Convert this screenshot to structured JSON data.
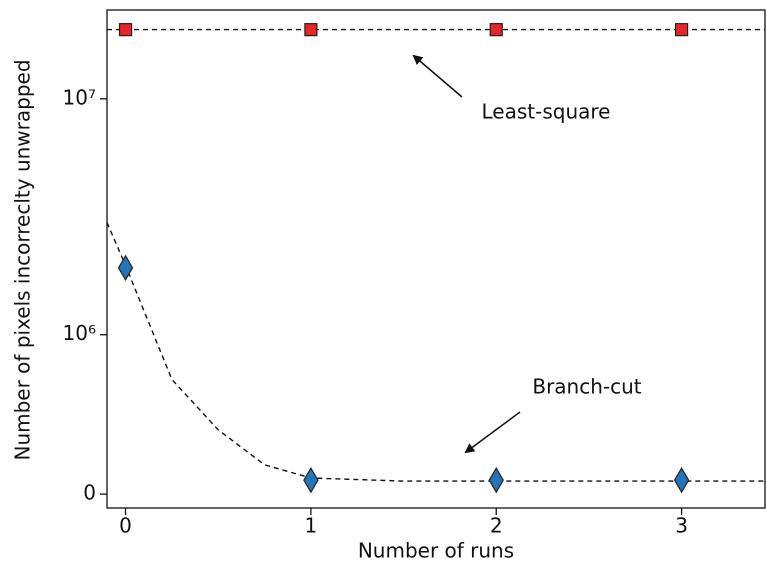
{
  "chart_data": {
    "type": "scatter",
    "xlabel": "Number of runs",
    "ylabel": "Number of pixels incorreclty unwrapped",
    "xlim": [
      -0.1,
      3.45
    ],
    "xticks": [
      0,
      1,
      2,
      3
    ],
    "ylim": [
      -43000,
      22000000
    ],
    "yscale": "symlog",
    "linthresh": 335000,
    "yticks": [
      0,
      {
        "value": 1000000,
        "label": "10⁶"
      },
      {
        "value": 10000000,
        "label": "10⁷"
      }
    ],
    "annotations": [
      "Least-square",
      "Branch-cut"
    ],
    "series": [
      {
        "style": "dashed",
        "color": "#111111",
        "x": [
          -0.1,
          3.45
        ],
        "values": [
          18500000,
          18500000
        ]
      },
      {
        "style": "dashed",
        "color": "#111111",
        "x": [
          -0.1,
          0,
          0.25,
          0.5,
          0.75,
          1,
          1.5,
          2,
          3,
          3.45
        ],
        "values": [
          3200000,
          2100000,
          570000,
          250000,
          97000,
          50000,
          40000,
          40000,
          40000,
          40000
        ]
      },
      {
        "marker": "square",
        "color": "#e8262a",
        "x": [
          0,
          1,
          2,
          3
        ],
        "values": [
          18500000,
          18500000,
          18500000,
          18500000
        ]
      },
      {
        "marker": "diamond",
        "color": "#2474b8",
        "x": [
          0,
          1,
          2,
          3
        ],
        "values": [
          2050000,
          43000,
          43000,
          43000
        ]
      }
    ]
  }
}
